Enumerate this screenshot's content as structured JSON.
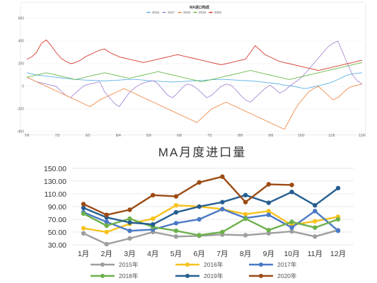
{
  "colors": {
    "top": {
      "2016": "#5cb0e4",
      "2017": "#a98ad6",
      "2018": "#f08c4a",
      "2019": "#6cba4e",
      "2020": "#d53d2e"
    },
    "bottom": {
      "2015": "#9e9e9e",
      "2016": "#f7c21c",
      "2017": "#4a78c6",
      "2018": "#6cb04a",
      "2019": "#255e91",
      "2020": "#9c4a14"
    }
  },
  "chart_data": [
    {
      "type": "line",
      "title": "MA进口构成",
      "y_ticks": [
        "600",
        "400",
        "200",
        "0",
        "-200",
        "-400"
      ],
      "ylim": [
        -400,
        600
      ],
      "x_ticks": [
        "7/6",
        "7/2",
        "9/2",
        "8/4",
        "5/9",
        "6/8",
        "7/1",
        "8/8",
        "9/8",
        "10/2",
        "11/5",
        "12/6"
      ],
      "series": [
        {
          "name": "2016",
          "values": [
            120,
            110,
            100,
            95,
            90,
            85,
            80,
            75,
            70,
            65,
            60,
            58,
            55,
            54,
            52,
            50,
            48,
            50,
            52,
            55,
            58,
            60,
            62,
            58,
            55,
            50,
            48,
            45,
            42,
            40,
            38,
            40,
            42,
            45,
            48,
            50,
            52,
            55,
            58,
            60,
            62,
            60,
            58,
            55,
            52,
            50,
            48,
            45,
            40,
            35,
            30,
            25,
            20,
            10,
            5,
            0,
            -10,
            -20,
            -15,
            -5,
            5,
            15,
            25,
            40,
            60,
            80,
            100,
            110,
            115,
            120
          ]
        },
        {
          "name": "2017",
          "values": [
            80,
            60,
            40,
            30,
            20,
            10,
            0,
            -40,
            -80,
            -100,
            -60,
            -20,
            10,
            20,
            30,
            40,
            -50,
            -100,
            -150,
            -180,
            -120,
            -60,
            -20,
            10,
            30,
            40,
            50,
            20,
            -30,
            -80,
            -100,
            -60,
            -10,
            20,
            10,
            -20,
            -60,
            -100,
            -80,
            -40,
            0,
            20,
            10,
            -30,
            -80,
            -120,
            -140,
            -100,
            -60,
            -20,
            10,
            -20,
            -60,
            -40,
            0,
            30,
            60,
            100,
            150,
            200,
            250,
            300,
            350,
            380,
            400,
            300,
            200,
            100,
            50,
            20
          ]
        },
        {
          "name": "2018",
          "values": [
            80,
            60,
            40,
            20,
            0,
            -20,
            -40,
            -60,
            -80,
            -100,
            -120,
            -140,
            -160,
            -180,
            -150,
            -120,
            -100,
            -80,
            -60,
            -40,
            -20,
            -40,
            -60,
            -80,
            -100,
            -120,
            -140,
            -160,
            -180,
            -200,
            -220,
            -240,
            -260,
            -280,
            -300,
            -320,
            -280,
            -240,
            -200,
            -180,
            -160,
            -140,
            -160,
            -180,
            -200,
            -220,
            -240,
            -260,
            -280,
            -300,
            -320,
            -340,
            -360,
            -380,
            -300,
            -220,
            -150,
            -100,
            -50,
            -20,
            0,
            -40,
            -80,
            -120,
            -100,
            -60,
            -20,
            0,
            10,
            20
          ]
        },
        {
          "name": "2019",
          "values": [
            80,
            90,
            100,
            110,
            120,
            110,
            100,
            90,
            80,
            70,
            60,
            70,
            80,
            90,
            100,
            110,
            120,
            110,
            100,
            90,
            80,
            70,
            80,
            90,
            100,
            110,
            120,
            130,
            120,
            110,
            100,
            90,
            80,
            70,
            60,
            50,
            40,
            50,
            60,
            70,
            80,
            90,
            100,
            110,
            120,
            130,
            140,
            130,
            120,
            110,
            100,
            90,
            80,
            70,
            60,
            70,
            80,
            90,
            100,
            110,
            120,
            130,
            140,
            150,
            160,
            170,
            180,
            190,
            200,
            210
          ]
        },
        {
          "name": "2020",
          "values": [
            240,
            260,
            300,
            380,
            410,
            360,
            300,
            250,
            220,
            200,
            210,
            230,
            260,
            280,
            300,
            320,
            330,
            300,
            280,
            260,
            250,
            240,
            230,
            220,
            210,
            220,
            230,
            240,
            250,
            260,
            270,
            280,
            270,
            260,
            250,
            240,
            230,
            220,
            210,
            200,
            190,
            200,
            210,
            220,
            230,
            240,
            300,
            360,
            320,
            280,
            260,
            240,
            220,
            210,
            200,
            190,
            180,
            170,
            160,
            150,
            140,
            150,
            160,
            170,
            180,
            190,
            200,
            210,
            220,
            230
          ]
        }
      ]
    },
    {
      "type": "line",
      "title": "MA月度进口量",
      "y_ticks": [
        "150.00",
        "130.00",
        "110.00",
        "90.00",
        "70.00",
        "50.00",
        "30.00"
      ],
      "ylim": [
        30,
        150
      ],
      "categories": [
        "1月",
        "2月",
        "3月",
        "4月",
        "5月",
        "6月",
        "7月",
        "8月",
        "9月",
        "10月",
        "11月",
        "12月"
      ],
      "series": [
        {
          "name": "2015年",
          "values": [
            48,
            31,
            40,
            50,
            43,
            44,
            46,
            45,
            48,
            51,
            43,
            53
          ]
        },
        {
          "name": "2016年",
          "values": [
            56,
            50,
            63,
            71,
            92,
            90,
            86,
            78,
            83,
            61,
            67,
            74
          ]
        },
        {
          "name": "2017年",
          "values": [
            81,
            66,
            52,
            54,
            64,
            70,
            86,
            72,
            77,
            57,
            83,
            52
          ]
        },
        {
          "name": "2018年",
          "values": [
            79,
            60,
            71,
            58,
            52,
            45,
            50,
            71,
            53,
            66,
            57,
            70
          ]
        },
        {
          "name": "2019年",
          "values": [
            88,
            73,
            65,
            62,
            81,
            90,
            97,
            108,
            96,
            113,
            92,
            119
          ]
        },
        {
          "name": "2020年",
          "values": [
            94,
            77,
            85,
            108,
            106,
            128,
            137,
            97,
            125,
            124,
            null,
            null
          ]
        }
      ]
    }
  ]
}
